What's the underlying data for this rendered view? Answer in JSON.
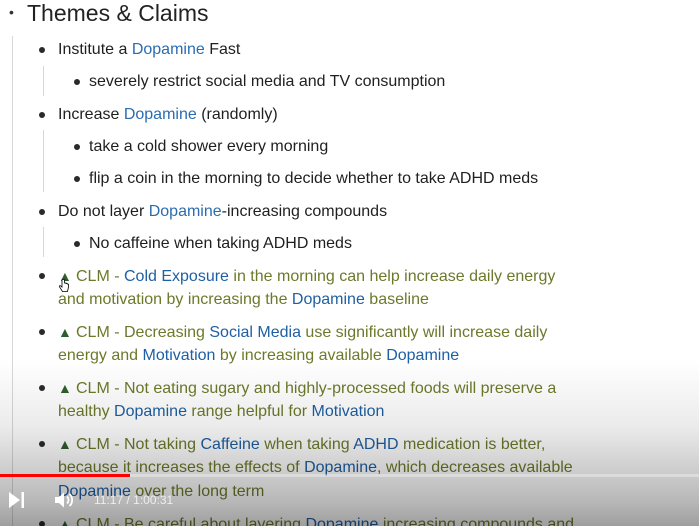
{
  "heading": {
    "title": "Themes & Claims"
  },
  "bullets": [
    {
      "before": "Institute a ",
      "link": "Dopamine",
      "after": " Fast",
      "children": [
        "severely restrict social media and TV consumption"
      ]
    },
    {
      "before": "Increase ",
      "link": "Dopamine",
      "after": " (randomly)",
      "children": [
        "take a cold shower every morning",
        "flip a coin in the morning to decide whether to take ADHD meds"
      ]
    },
    {
      "before": "Do not layer ",
      "link": "Dopamine",
      "after": "-increasing compounds",
      "children": [
        "No caffeine when taking ADHD meds"
      ]
    }
  ],
  "claims": [
    {
      "prefix": "CLM - ",
      "link1": "Cold Exposure",
      "text1": " in the morning can help increase daily energy",
      "line2_text": "and motivation by increasing the ",
      "link2": "Dopamine",
      "text2": " baseline"
    },
    {
      "prefix": "CLM - Decreasing ",
      "link1": "Social Media",
      "text1": " use significantly will increase daily",
      "line2_text": "energy and ",
      "link2": "Motivation",
      "mid": " by increasing available ",
      "link3": "Dopamine"
    },
    {
      "prefix": "CLM - Not eating sugary and highly-processed foods will preserve a",
      "line2_text": "healthy ",
      "link2": "Dopamine",
      "mid": " range helpful for ",
      "link3": "Motivation"
    },
    {
      "prefix": "CLM - Not taking ",
      "link1": "Caffeine",
      "text1": " when taking ",
      "link1b": "ADHD",
      "text1b": " medication is better,",
      "line2_text": "because it increases the effects of ",
      "link2": "Dopamine",
      "mid": ", which decreases available",
      "line3_link": "Dopamine",
      "line3_text": " over the long term"
    },
    {
      "prefix": "CLM - Be careful about layering ",
      "link1": "Dopamine",
      "text1": " increasing compounds and"
    }
  ],
  "player": {
    "current_time": "11:17",
    "separator": " / ",
    "duration": "1:00:31",
    "progress": 0.186,
    "accent": "#ff0000"
  }
}
